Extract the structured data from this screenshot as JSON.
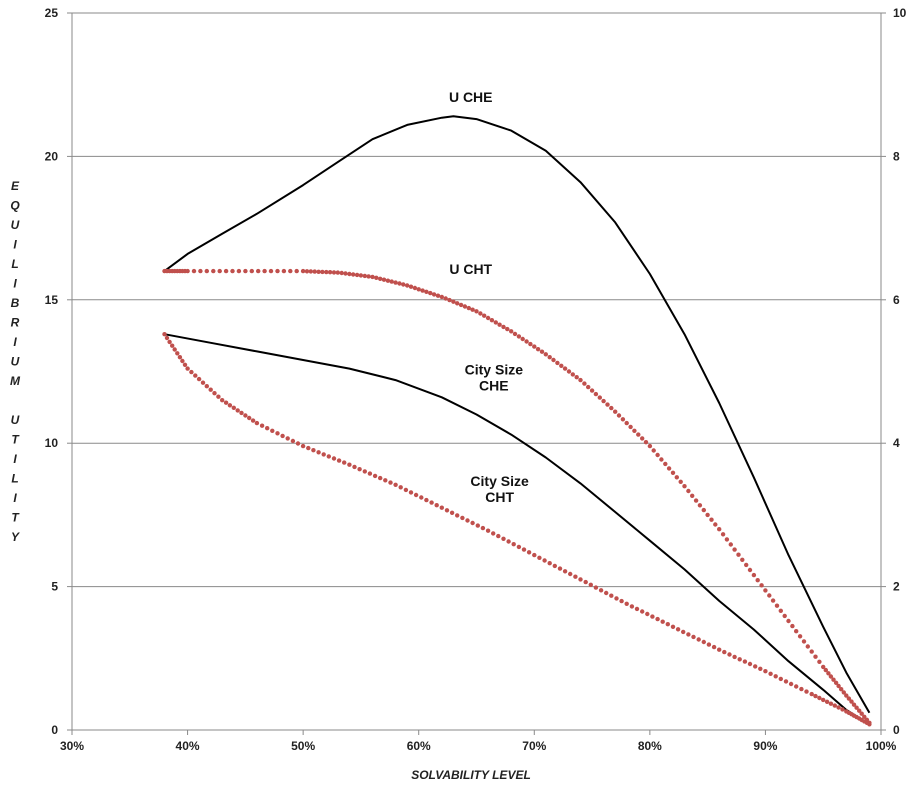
{
  "chart_data": {
    "type": "line",
    "title": "",
    "xlabel": "SOLVABILITY LEVEL",
    "ylabel": "EQUILIBRIUM UTILITY",
    "ylabel_lines": [
      "E",
      "Q",
      "U",
      "I",
      "L",
      "I",
      "B",
      "R",
      "I",
      "U",
      "M",
      "",
      "U",
      "T",
      "I",
      "L",
      "I",
      "T",
      "Y"
    ],
    "xlim": [
      0.3,
      1.0
    ],
    "ylim_left": [
      0,
      25
    ],
    "ylim_right": [
      0,
      10
    ],
    "x_ticks": [
      "30%",
      "40%",
      "50%",
      "60%",
      "70%",
      "80%",
      "90%",
      "100%"
    ],
    "x_tick_values": [
      0.3,
      0.4,
      0.5,
      0.6,
      0.7,
      0.8,
      0.9,
      1.0
    ],
    "y_left_ticks": [
      "0",
      "5",
      "10",
      "15",
      "20",
      "25"
    ],
    "y_left_tick_values": [
      0,
      5,
      10,
      15,
      20,
      25
    ],
    "y_right_ticks": [
      "0",
      "2",
      "4",
      "6",
      "8",
      "10"
    ],
    "y_right_tick_values": [
      0,
      2,
      4,
      6,
      8,
      10
    ],
    "grid": "horizontal",
    "series": [
      {
        "name": "U CHE",
        "axis": "left",
        "style": "solid",
        "color": "#000000",
        "x": [
          0.38,
          0.4,
          0.43,
          0.46,
          0.5,
          0.53,
          0.56,
          0.59,
          0.62,
          0.63,
          0.65,
          0.68,
          0.71,
          0.74,
          0.77,
          0.8,
          0.83,
          0.86,
          0.89,
          0.92,
          0.95,
          0.97,
          0.99
        ],
        "y": [
          16.0,
          16.6,
          17.3,
          18.0,
          19.0,
          19.8,
          20.6,
          21.1,
          21.35,
          21.4,
          21.3,
          20.9,
          20.2,
          19.1,
          17.7,
          15.9,
          13.8,
          11.4,
          8.8,
          6.1,
          3.6,
          2.0,
          0.6
        ]
      },
      {
        "name": "U CHT",
        "axis": "left",
        "style": "dotted",
        "color": "#c0504d",
        "x": [
          0.38,
          0.4,
          0.45,
          0.5,
          0.53,
          0.56,
          0.59,
          0.62,
          0.65,
          0.68,
          0.71,
          0.74,
          0.77,
          0.8,
          0.83,
          0.86,
          0.89,
          0.92,
          0.95,
          0.97,
          0.99
        ],
        "y": [
          16.0,
          16.0,
          16.0,
          16.0,
          15.95,
          15.8,
          15.5,
          15.1,
          14.6,
          13.9,
          13.1,
          12.2,
          11.1,
          9.9,
          8.5,
          7.0,
          5.4,
          3.8,
          2.2,
          1.2,
          0.25
        ]
      },
      {
        "name": "City Size CHE",
        "axis": "right",
        "style": "solid",
        "color": "#000000",
        "x": [
          0.38,
          0.42,
          0.46,
          0.5,
          0.54,
          0.58,
          0.62,
          0.65,
          0.68,
          0.71,
          0.74,
          0.77,
          0.8,
          0.83,
          0.86,
          0.89,
          0.92,
          0.95,
          0.97,
          0.99
        ],
        "y": [
          5.52,
          5.4,
          5.28,
          5.16,
          5.04,
          4.88,
          4.64,
          4.4,
          4.12,
          3.8,
          3.44,
          3.04,
          2.64,
          2.24,
          1.8,
          1.4,
          0.96,
          0.56,
          0.28,
          0.08
        ]
      },
      {
        "name": "City Size CHT",
        "axis": "right",
        "style": "dotted",
        "color": "#c0504d",
        "x": [
          0.38,
          0.4,
          0.43,
          0.46,
          0.5,
          0.54,
          0.58,
          0.62,
          0.66,
          0.7,
          0.74,
          0.78,
          0.82,
          0.86,
          0.9,
          0.94,
          0.97,
          0.99
        ],
        "y": [
          5.52,
          5.04,
          4.6,
          4.28,
          3.96,
          3.7,
          3.42,
          3.1,
          2.78,
          2.44,
          2.1,
          1.76,
          1.44,
          1.12,
          0.82,
          0.5,
          0.26,
          0.08
        ]
      }
    ],
    "annotations": [
      {
        "lines": [
          "U CHE"
        ],
        "x": 0.645,
        "y": 21.9,
        "axis": "left"
      },
      {
        "lines": [
          "U CHT"
        ],
        "x": 0.645,
        "y": 15.9,
        "axis": "left"
      },
      {
        "lines": [
          "City Size",
          "CHE"
        ],
        "x": 0.665,
        "y": 12.4,
        "axis": "left"
      },
      {
        "lines": [
          "City Size",
          "CHT"
        ],
        "x": 0.67,
        "y": 8.5,
        "axis": "left"
      }
    ]
  }
}
